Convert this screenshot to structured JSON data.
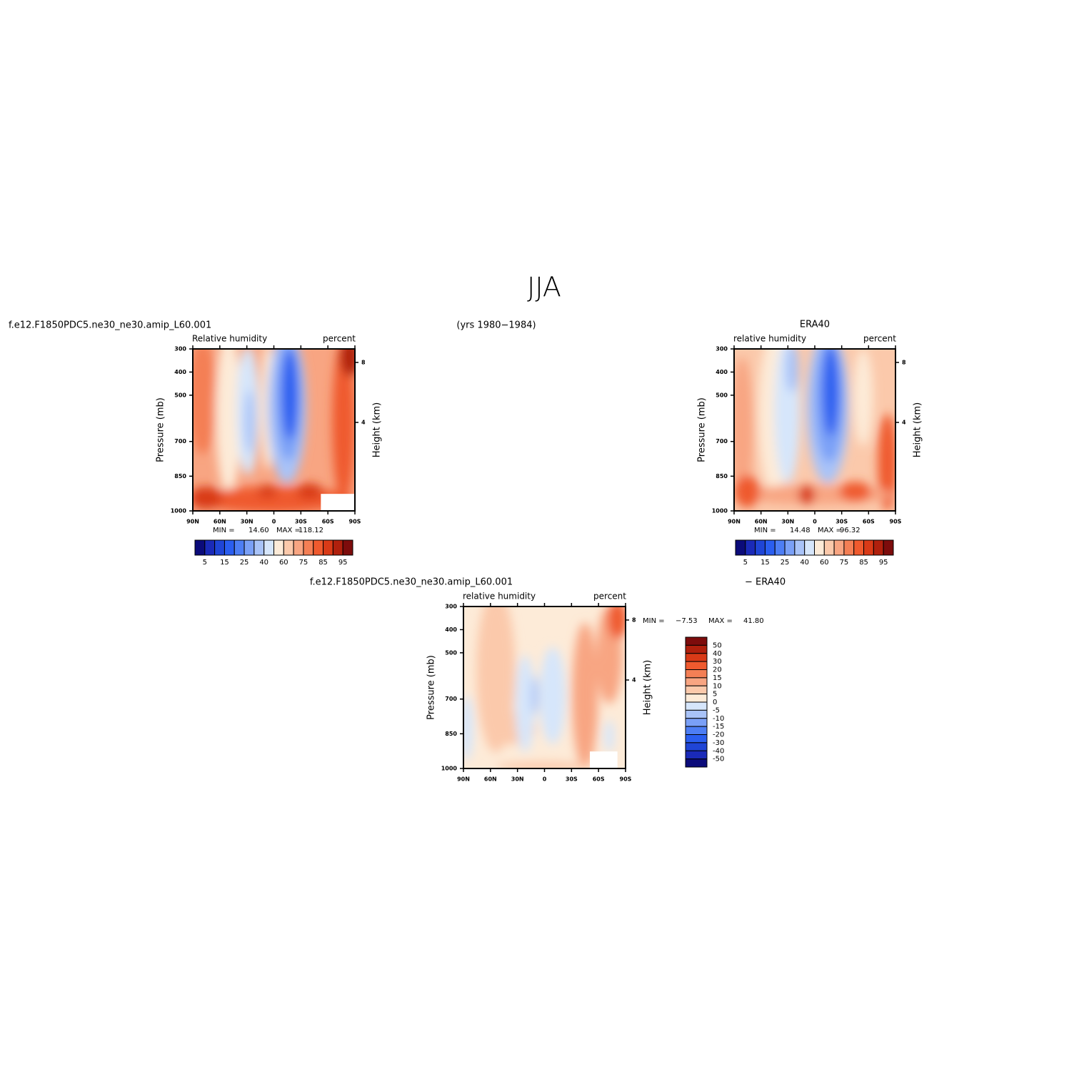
{
  "title": "JJA",
  "case_label": "f.e12.F1850PDC5.ne30_ne30.amip_L60.001",
  "years_label": "(yrs 1980−1984)",
  "chart_data": [
    {
      "type": "contour",
      "left_string": "Relative  humidity",
      "right_string": "percent",
      "ylabel": "Pressure (mb)",
      "y2label": "Height (km)",
      "xlim": [
        90,
        -90
      ],
      "xticks": [
        {
          "value": 90,
          "label": "90N"
        },
        {
          "value": 60,
          "label": "60N"
        },
        {
          "value": 30,
          "label": "30N"
        },
        0,
        {
          "value": -30,
          "label": "30S"
        },
        {
          "value": -60,
          "label": "60S"
        },
        {
          "value": -90,
          "label": "90S"
        }
      ],
      "ylim": [
        1000,
        300
      ],
      "yticks": [
        300,
        400,
        500,
        700,
        850,
        1000
      ],
      "y2lim": [
        -1.9,
        8.9
      ],
      "y2ticks": [
        8,
        4
      ],
      "stats": [
        "MIN =",
        "14.60",
        "MAX =",
        "118.12"
      ],
      "colorbar": {
        "orientation": "horizontal",
        "colors": [
          "#0b0b7a",
          "#1a2ab8",
          "#1f45d6",
          "#2a5ef0",
          "#4d7ef5",
          "#7aa0f7",
          "#a9c3f8",
          "#d6e6fb",
          "#fdebd8",
          "#fbc9ab",
          "#f8a582",
          "#f47f55",
          "#ef5a2e",
          "#d93a17",
          "#b0200d",
          "#7d0c0c"
        ],
        "ticks": [
          5,
          15,
          25,
          40,
          60,
          75,
          85,
          95
        ]
      }
    },
    {
      "type": "contour",
      "title": "ERA40",
      "left_string": "relative  humidity",
      "right_string": "percent",
      "ylabel": "Pressure (mb)",
      "y2label": "Height (km)",
      "xlim": [
        90,
        -90
      ],
      "xticks": [
        {
          "value": 90,
          "label": "90N"
        },
        {
          "value": 60,
          "label": "60N"
        },
        {
          "value": 30,
          "label": "30N"
        },
        0,
        {
          "value": -30,
          "label": "30S"
        },
        {
          "value": -60,
          "label": "60S"
        },
        {
          "value": -90,
          "label": "90S"
        }
      ],
      "ylim": [
        1000,
        300
      ],
      "yticks": [
        300,
        400,
        500,
        700,
        850,
        1000
      ],
      "y2lim": [
        -1.9,
        8.9
      ],
      "y2ticks": [
        8,
        4
      ],
      "stats": [
        "MIN =",
        "14.48",
        "MAX =",
        "96.32"
      ],
      "colorbar": {
        "orientation": "horizontal",
        "colors": [
          "#0b0b7a",
          "#1a2ab8",
          "#1f45d6",
          "#2a5ef0",
          "#4d7ef5",
          "#7aa0f7",
          "#a9c3f8",
          "#d6e6fb",
          "#fdebd8",
          "#fbc9ab",
          "#f8a582",
          "#f47f55",
          "#ef5a2e",
          "#d93a17",
          "#b0200d",
          "#7d0c0c"
        ],
        "ticks": [
          5,
          15,
          25,
          40,
          60,
          75,
          85,
          95
        ]
      }
    },
    {
      "type": "contour",
      "title": "f.e12.F1850PDC5.ne30_ne30.amip_L60.001",
      "title_right": "− ERA40",
      "left_string": "relative  humidity",
      "right_string": "percent",
      "ylabel": "Pressure (mb)",
      "y2label": "Height (km)",
      "xlim": [
        90,
        -90
      ],
      "xticks": [
        {
          "value": 90,
          "label": "90N"
        },
        {
          "value": 60,
          "label": "60N"
        },
        {
          "value": 30,
          "label": "30N"
        },
        0,
        {
          "value": -30,
          "label": "30S"
        },
        {
          "value": -60,
          "label": "60S"
        },
        {
          "value": -90,
          "label": "90S"
        }
      ],
      "ylim": [
        1000,
        300
      ],
      "yticks": [
        300,
        400,
        500,
        700,
        850,
        1000
      ],
      "y2lim": [
        -1.9,
        8.9
      ],
      "y2ticks": [
        8,
        4
      ],
      "stats": [
        "MIN =",
        "−7.53",
        "MAX =",
        "41.80"
      ],
      "colorbar": {
        "orientation": "vertical",
        "colors": [
          "#7d0c0c",
          "#b0200d",
          "#d93a17",
          "#ef5a2e",
          "#f47f55",
          "#f8a582",
          "#fbc9ab",
          "#fdebd8",
          "#d6e6fb",
          "#a9c3f8",
          "#7aa0f7",
          "#4d7ef5",
          "#2a5ef0",
          "#1f45d6",
          "#1a2ab8",
          "#0b0b7a"
        ],
        "ticks": [
          50,
          40,
          30,
          20,
          15,
          10,
          5,
          0,
          -5,
          -10,
          -15,
          -20,
          -30,
          -40,
          -50
        ]
      }
    }
  ]
}
